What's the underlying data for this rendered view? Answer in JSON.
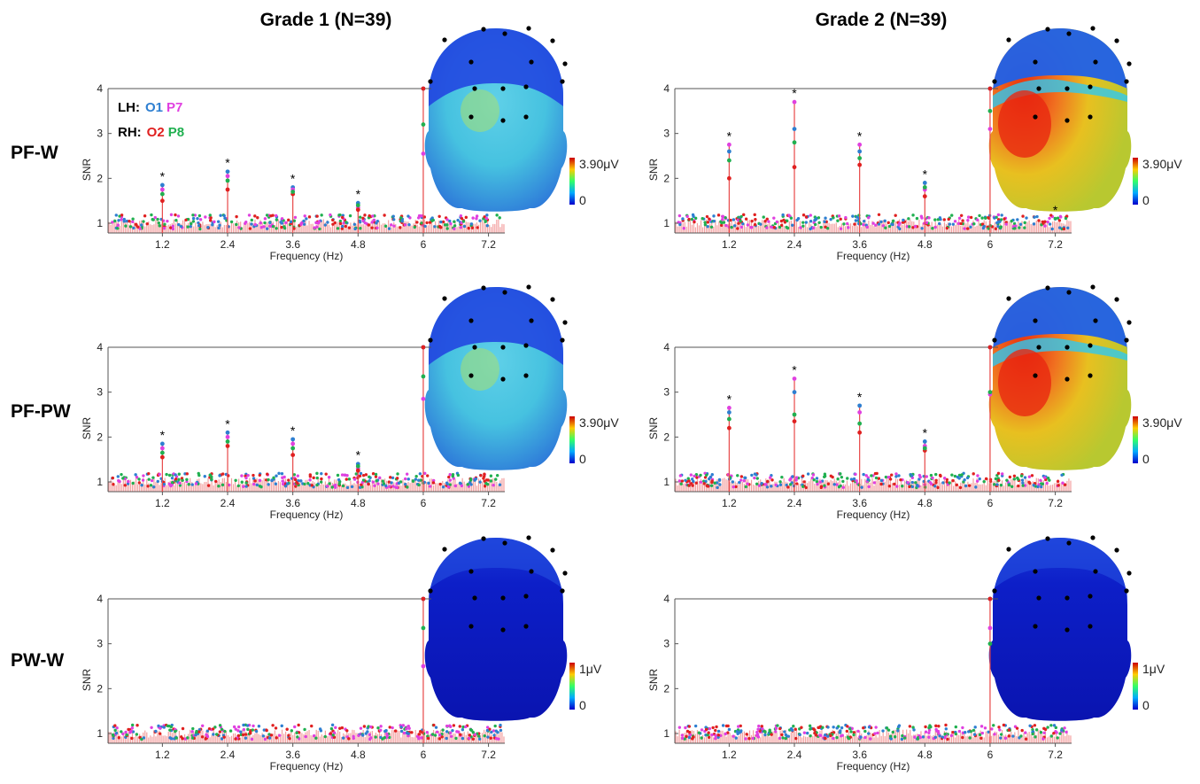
{
  "columns": [
    "Grade 1 (N=39)",
    "Grade 2 (N=39)"
  ],
  "rows": [
    "PF-W",
    "PF-PW",
    "PW-W"
  ],
  "legend": {
    "lh_label": "LH:",
    "rh_label": "RH:",
    "o1": "O1",
    "p7": "P7",
    "o2": "O2",
    "p8": "P8"
  },
  "colors": {
    "O1": "#2e7fd1",
    "P7": "#e040e0",
    "O2": "#e02020",
    "P8": "#20b050",
    "stem": "#f07070",
    "baseline_fill": "#f3a0a0"
  },
  "chart_data": [
    {
      "type": "line",
      "panel": "Grade 1 (N=39) / PF-W",
      "xlabel": "Frequency (Hz)",
      "ylabel": "SNR",
      "xticks": [
        "1.2",
        "2.4",
        "3.6",
        "4.8",
        "6",
        "7.2"
      ],
      "yticks": [
        "1",
        "2",
        "3",
        "4"
      ],
      "xlim": [
        0.2,
        7.5
      ],
      "ylim": [
        0.6,
        4
      ],
      "series": [
        {
          "name": "O1",
          "peaks": [
            [
              1.2,
              1.85
            ],
            [
              2.4,
              2.15
            ],
            [
              3.6,
              1.8
            ],
            [
              4.8,
              1.45
            ],
            [
              6.0,
              4.0
            ]
          ]
        },
        {
          "name": "P7",
          "peaks": [
            [
              1.2,
              1.75
            ],
            [
              2.4,
              2.05
            ],
            [
              3.6,
              1.75
            ],
            [
              4.8,
              1.35
            ],
            [
              6.0,
              2.55
            ]
          ]
        },
        {
          "name": "O2",
          "peaks": [
            [
              1.2,
              1.5
            ],
            [
              2.4,
              1.75
            ],
            [
              3.6,
              1.65
            ],
            [
              4.8,
              1.3
            ],
            [
              6.0,
              4.0
            ]
          ]
        },
        {
          "name": "P8",
          "peaks": [
            [
              1.2,
              1.65
            ],
            [
              2.4,
              1.95
            ],
            [
              3.6,
              1.7
            ],
            [
              4.8,
              1.4
            ],
            [
              6.0,
              3.2
            ]
          ]
        }
      ],
      "significant": [
        "1.2",
        "2.4",
        "3.6",
        "4.8"
      ],
      "topomap": {
        "scale_max": "3.90μV",
        "scale_min": "0"
      }
    },
    {
      "type": "line",
      "panel": "Grade 2 (N=39) / PF-W",
      "xlabel": "Frequency (Hz)",
      "ylabel": "SNR",
      "xticks": [
        "1.2",
        "2.4",
        "3.6",
        "4.8",
        "6",
        "7.2"
      ],
      "yticks": [
        "1",
        "2",
        "3",
        "4"
      ],
      "xlim": [
        0.2,
        7.5
      ],
      "ylim": [
        0.6,
        4
      ],
      "series": [
        {
          "name": "O1",
          "peaks": [
            [
              1.2,
              2.6
            ],
            [
              2.4,
              3.1
            ],
            [
              3.6,
              2.6
            ],
            [
              4.8,
              1.9
            ],
            [
              6.0,
              4.0
            ]
          ]
        },
        {
          "name": "P7",
          "peaks": [
            [
              1.2,
              2.75
            ],
            [
              2.4,
              3.7
            ],
            [
              3.6,
              2.75
            ],
            [
              4.8,
              1.75
            ],
            [
              6.0,
              3.1
            ]
          ]
        },
        {
          "name": "O2",
          "peaks": [
            [
              1.2,
              2.0
            ],
            [
              2.4,
              2.25
            ],
            [
              3.6,
              2.3
            ],
            [
              4.8,
              1.6
            ],
            [
              6.0,
              4.0
            ]
          ]
        },
        {
          "name": "P8",
          "peaks": [
            [
              1.2,
              2.4
            ],
            [
              2.4,
              2.8
            ],
            [
              3.6,
              2.45
            ],
            [
              4.8,
              1.8
            ],
            [
              6.0,
              3.5
            ]
          ]
        }
      ],
      "significant": [
        "1.2",
        "2.4",
        "3.6",
        "4.8",
        "7.2"
      ],
      "topomap": {
        "scale_max": "3.90μV",
        "scale_min": "0"
      }
    },
    {
      "type": "line",
      "panel": "Grade 1 (N=39) / PF-PW",
      "xlabel": "Frequency (Hz)",
      "ylabel": "SNR",
      "xticks": [
        "1.2",
        "2.4",
        "3.6",
        "4.8",
        "6",
        "7.2"
      ],
      "yticks": [
        "1",
        "2",
        "3",
        "4"
      ],
      "xlim": [
        0.2,
        7.5
      ],
      "ylim": [
        0.6,
        4
      ],
      "series": [
        {
          "name": "O1",
          "peaks": [
            [
              1.2,
              1.85
            ],
            [
              2.4,
              2.1
            ],
            [
              3.6,
              1.95
            ],
            [
              4.8,
              1.4
            ],
            [
              6.0,
              4.0
            ]
          ]
        },
        {
          "name": "P7",
          "peaks": [
            [
              1.2,
              1.75
            ],
            [
              2.4,
              2.0
            ],
            [
              3.6,
              1.85
            ],
            [
              4.8,
              1.3
            ],
            [
              6.0,
              2.85
            ]
          ]
        },
        {
          "name": "O2",
          "peaks": [
            [
              1.2,
              1.55
            ],
            [
              2.4,
              1.8
            ],
            [
              3.6,
              1.6
            ],
            [
              4.8,
              1.25
            ],
            [
              6.0,
              4.0
            ]
          ]
        },
        {
          "name": "P8",
          "peaks": [
            [
              1.2,
              1.65
            ],
            [
              2.4,
              1.9
            ],
            [
              3.6,
              1.75
            ],
            [
              4.8,
              1.35
            ],
            [
              6.0,
              3.35
            ]
          ]
        }
      ],
      "significant": [
        "1.2",
        "2.4",
        "3.6",
        "4.8"
      ],
      "topomap": {
        "scale_max": "3.90μV",
        "scale_min": "0"
      }
    },
    {
      "type": "line",
      "panel": "Grade 2 (N=39) / PF-PW",
      "xlabel": "Frequency (Hz)",
      "ylabel": "SNR",
      "xticks": [
        "1.2",
        "2.4",
        "3.6",
        "4.8",
        "6",
        "7.2"
      ],
      "yticks": [
        "1",
        "2",
        "3",
        "4"
      ],
      "xlim": [
        0.2,
        7.5
      ],
      "ylim": [
        0.6,
        4
      ],
      "series": [
        {
          "name": "O1",
          "peaks": [
            [
              1.2,
              2.55
            ],
            [
              2.4,
              3.0
            ],
            [
              3.6,
              2.7
            ],
            [
              4.8,
              1.9
            ],
            [
              6.0,
              4.0
            ]
          ]
        },
        {
          "name": "P7",
          "peaks": [
            [
              1.2,
              2.65
            ],
            [
              2.4,
              3.3
            ],
            [
              3.6,
              2.55
            ],
            [
              4.8,
              1.8
            ],
            [
              6.0,
              2.95
            ]
          ]
        },
        {
          "name": "O2",
          "peaks": [
            [
              1.2,
              2.2
            ],
            [
              2.4,
              2.35
            ],
            [
              3.6,
              2.1
            ],
            [
              4.8,
              1.7
            ],
            [
              6.0,
              4.0
            ]
          ]
        },
        {
          "name": "P8",
          "peaks": [
            [
              1.2,
              2.4
            ],
            [
              2.4,
              2.5
            ],
            [
              3.6,
              2.3
            ],
            [
              4.8,
              1.75
            ],
            [
              6.0,
              3.0
            ]
          ]
        }
      ],
      "significant": [
        "1.2",
        "2.4",
        "3.6",
        "4.8"
      ],
      "topomap": {
        "scale_max": "3.90μV",
        "scale_min": "0"
      }
    },
    {
      "type": "line",
      "panel": "Grade 1 (N=39) / PW-W",
      "xlabel": "Frequency (Hz)",
      "ylabel": "SNR",
      "xticks": [
        "1.2",
        "2.4",
        "3.6",
        "4.8",
        "6",
        "7.2"
      ],
      "yticks": [
        "1",
        "2",
        "3",
        "4"
      ],
      "xlim": [
        0.2,
        7.5
      ],
      "ylim": [
        0.6,
        4
      ],
      "series": [
        {
          "name": "O1",
          "peaks": [
            [
              6.0,
              4.0
            ]
          ]
        },
        {
          "name": "P7",
          "peaks": [
            [
              6.0,
              2.5
            ]
          ]
        },
        {
          "name": "O2",
          "peaks": [
            [
              6.0,
              4.0
            ]
          ]
        },
        {
          "name": "P8",
          "peaks": [
            [
              6.0,
              3.35
            ]
          ]
        }
      ],
      "significant": [],
      "topomap": {
        "scale_max": "1μV",
        "scale_min": "0"
      }
    },
    {
      "type": "line",
      "panel": "Grade 2 (N=39) / PW-W",
      "xlabel": "Frequency (Hz)",
      "ylabel": "SNR",
      "xticks": [
        "1.2",
        "2.4",
        "3.6",
        "4.8",
        "6",
        "7.2"
      ],
      "yticks": [
        "1",
        "2",
        "3",
        "4"
      ],
      "xlim": [
        0.2,
        7.5
      ],
      "ylim": [
        0.6,
        4
      ],
      "series": [
        {
          "name": "O1",
          "peaks": [
            [
              6.0,
              4.0
            ]
          ]
        },
        {
          "name": "P7",
          "peaks": [
            [
              6.0,
              3.35
            ]
          ]
        },
        {
          "name": "O2",
          "peaks": [
            [
              6.0,
              4.0
            ]
          ]
        },
        {
          "name": "P8",
          "peaks": [
            [
              6.0,
              3.0
            ]
          ]
        }
      ],
      "significant": [],
      "topomap": {
        "scale_max": "1μV",
        "scale_min": "0"
      }
    }
  ]
}
